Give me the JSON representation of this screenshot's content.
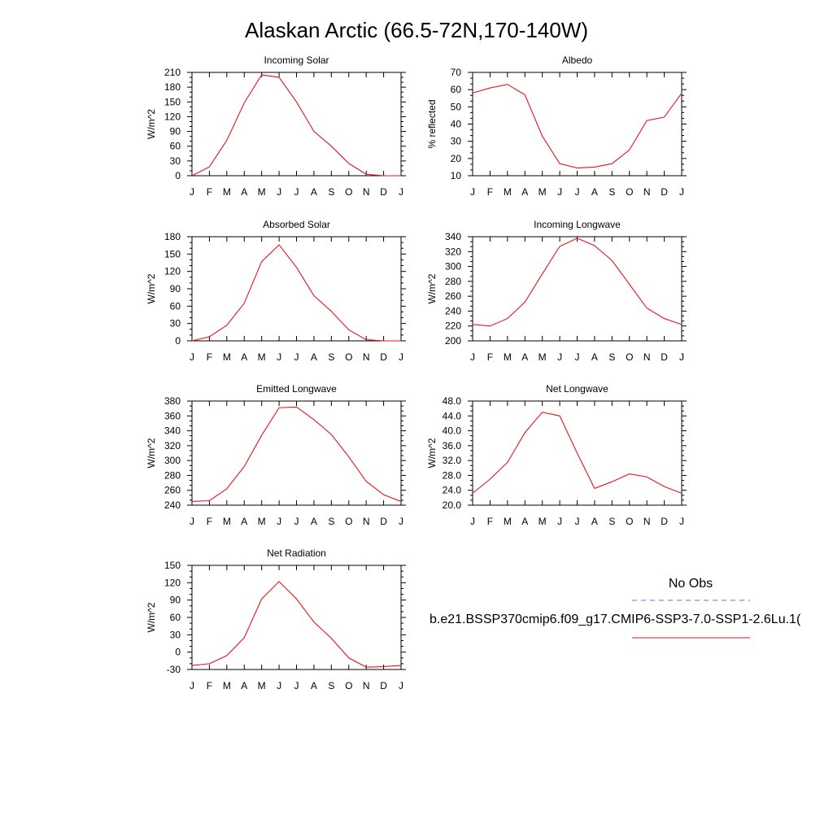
{
  "figure": {
    "title": "Alaskan Arctic (66.5-72N,170-140W)"
  },
  "legend": {
    "obs_label": "No Obs",
    "obs_color": "#6a6ae0",
    "model_label": "b.e21.BSSP370cmip6.f09_g17.CMIP6-SSP3-7.0-SSP1-2.6Lu.1(",
    "model_color": "#e8141e"
  },
  "chart_data": [
    {
      "type": "line",
      "title": "Incoming Solar",
      "ylabel": "W/m^2",
      "categories": [
        "J",
        "F",
        "M",
        "A",
        "M",
        "J",
        "J",
        "A",
        "S",
        "O",
        "N",
        "D",
        "J"
      ],
      "ylim": [
        0,
        210
      ],
      "yticks": [
        0,
        30,
        60,
        90,
        120,
        150,
        180,
        210
      ],
      "ytick_labels": [
        "0",
        "30",
        "60",
        "90",
        "120",
        "150",
        "180",
        "210"
      ],
      "series": [
        {
          "values": [
            0,
            18,
            72,
            148,
            205,
            200,
            150,
            90,
            60,
            25,
            3,
            0,
            0
          ]
        }
      ]
    },
    {
      "type": "line",
      "title": "Albedo",
      "ylabel": "% reflected",
      "categories": [
        "J",
        "F",
        "M",
        "A",
        "M",
        "J",
        "J",
        "A",
        "S",
        "O",
        "N",
        "D",
        "J"
      ],
      "ylim": [
        10,
        70
      ],
      "yticks": [
        10,
        20,
        30,
        40,
        50,
        60,
        70
      ],
      "ytick_labels": [
        "10",
        "20",
        "30",
        "40",
        "50",
        "60",
        "70"
      ],
      "series": [
        {
          "values": [
            58,
            61,
            63,
            57,
            33,
            17,
            14.5,
            15,
            17,
            25,
            42,
            44,
            58
          ]
        }
      ]
    },
    {
      "type": "line",
      "title": "Absorbed Solar",
      "ylabel": "W/m^2",
      "categories": [
        "J",
        "F",
        "M",
        "A",
        "M",
        "J",
        "J",
        "A",
        "S",
        "O",
        "N",
        "D",
        "J"
      ],
      "ylim": [
        0,
        180
      ],
      "yticks": [
        0,
        30,
        60,
        90,
        120,
        150,
        180
      ],
      "ytick_labels": [
        "0",
        "30",
        "60",
        "90",
        "120",
        "150",
        "180"
      ],
      "series": [
        {
          "values": [
            0,
            7,
            27,
            65,
            137,
            166,
            127,
            78,
            51,
            19,
            2,
            0,
            0
          ]
        }
      ]
    },
    {
      "type": "line",
      "title": "Incoming Longwave",
      "ylabel": "W/m^2",
      "categories": [
        "J",
        "F",
        "M",
        "A",
        "M",
        "J",
        "J",
        "A",
        "S",
        "O",
        "N",
        "D",
        "J"
      ],
      "ylim": [
        200,
        340
      ],
      "yticks": [
        200,
        220,
        240,
        260,
        280,
        300,
        320,
        340
      ],
      "ytick_labels": [
        "200",
        "220",
        "240",
        "260",
        "280",
        "300",
        "320",
        "340"
      ],
      "series": [
        {
          "values": [
            222,
            220,
            230,
            252,
            290,
            327,
            338,
            328,
            308,
            276,
            244,
            230,
            222
          ]
        }
      ]
    },
    {
      "type": "line",
      "title": "Emitted Longwave",
      "ylabel": "W/m^2",
      "categories": [
        "J",
        "F",
        "M",
        "A",
        "M",
        "J",
        "J",
        "A",
        "S",
        "O",
        "N",
        "D",
        "J"
      ],
      "ylim": [
        240,
        380
      ],
      "yticks": [
        240,
        260,
        280,
        300,
        320,
        340,
        360,
        380
      ],
      "ytick_labels": [
        "240",
        "260",
        "280",
        "300",
        "320",
        "340",
        "360",
        "380"
      ],
      "series": [
        {
          "values": [
            245,
            246,
            262,
            292,
            334,
            371,
            372,
            355,
            335,
            305,
            272,
            254,
            245
          ]
        }
      ]
    },
    {
      "type": "line",
      "title": "Net Longwave",
      "ylabel": "W/m^2",
      "categories": [
        "J",
        "F",
        "M",
        "A",
        "M",
        "J",
        "J",
        "A",
        "S",
        "O",
        "N",
        "D",
        "J"
      ],
      "ylim": [
        20,
        48
      ],
      "yticks": [
        20,
        24,
        28,
        32,
        36,
        40,
        44,
        48
      ],
      "ytick_labels": [
        "20.0",
        "24.0",
        "28.0",
        "32.0",
        "36.0",
        "40.0",
        "44.0",
        "48.0"
      ],
      "series": [
        {
          "values": [
            23.2,
            27,
            31.5,
            39.5,
            45,
            44,
            34,
            24.5,
            26.3,
            28.4,
            27.6,
            25,
            23.2
          ]
        }
      ]
    },
    {
      "type": "line",
      "title": "Net Radiation",
      "ylabel": "W/m^2",
      "categories": [
        "J",
        "F",
        "M",
        "A",
        "M",
        "J",
        "J",
        "A",
        "S",
        "O",
        "N",
        "D",
        "J"
      ],
      "ylim": [
        -30,
        150
      ],
      "yticks": [
        -30,
        0,
        30,
        60,
        90,
        120,
        150
      ],
      "ytick_labels": [
        "-30",
        "0",
        "30",
        "60",
        "90",
        "120",
        "150"
      ],
      "series": [
        {
          "values": [
            -23,
            -20,
            -6,
            25,
            92,
            122,
            92,
            52,
            24,
            -10,
            -26,
            -25,
            -23
          ]
        }
      ]
    }
  ]
}
